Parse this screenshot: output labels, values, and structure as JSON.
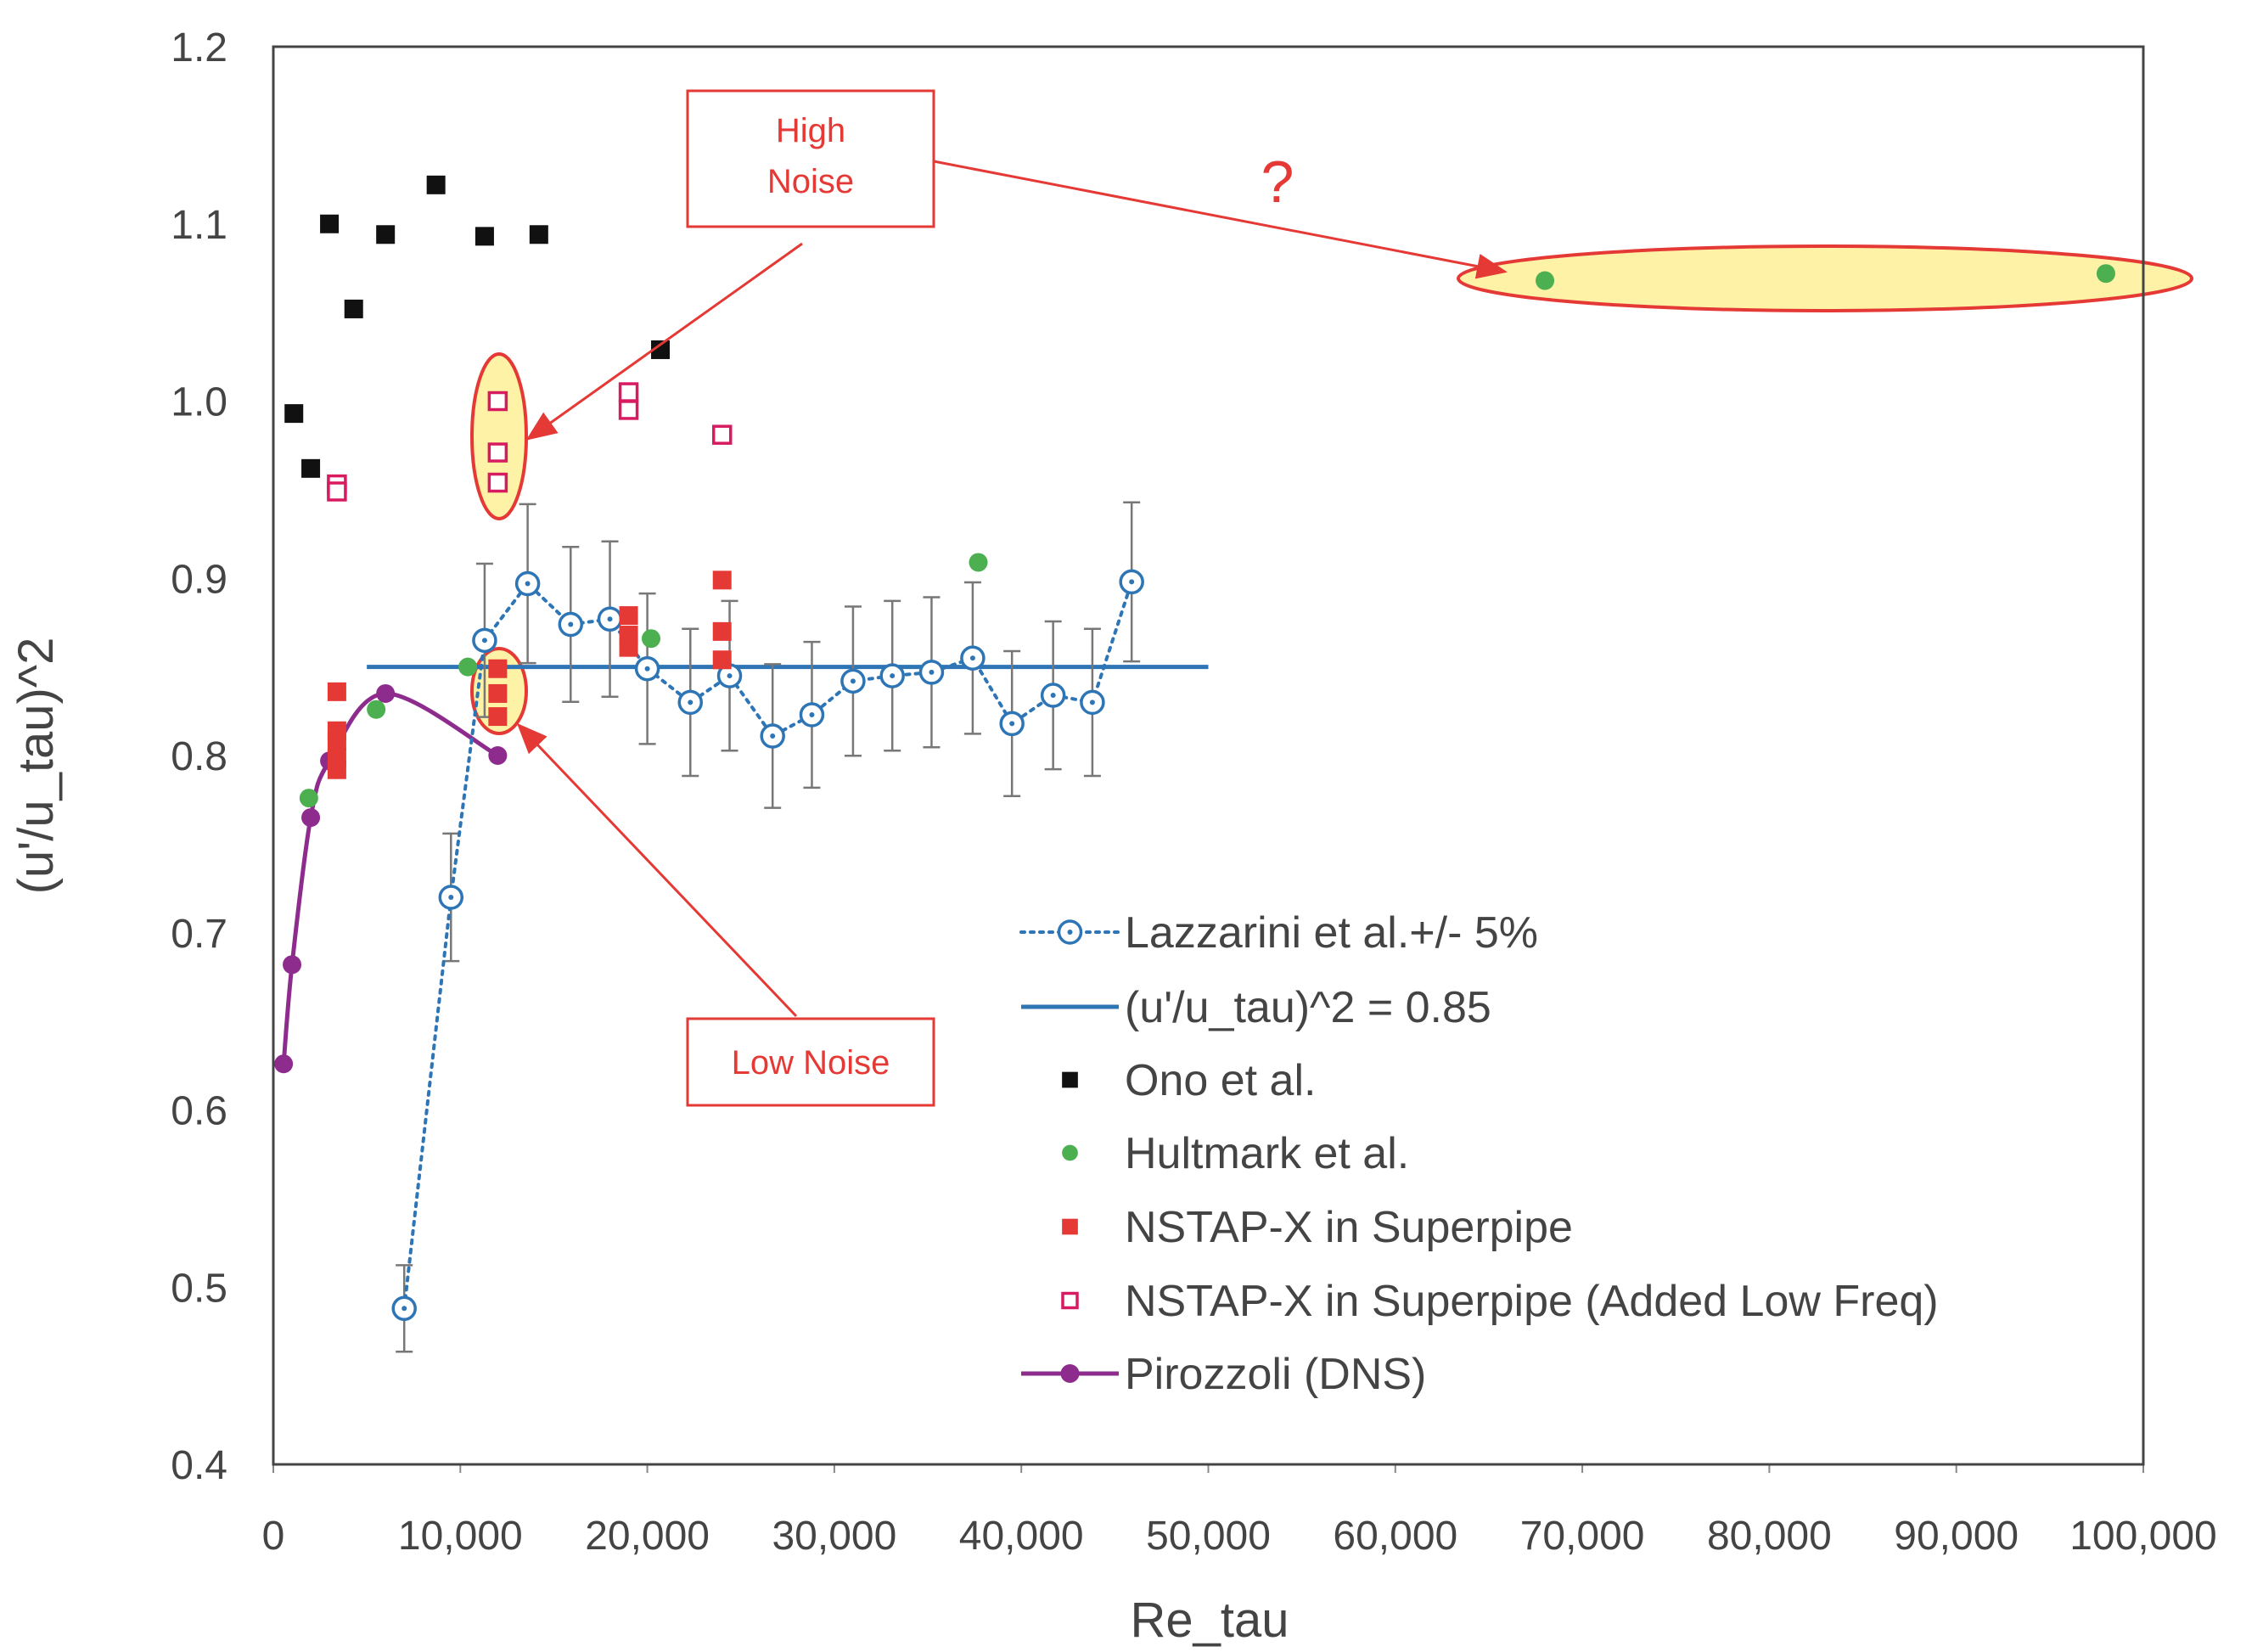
{
  "chart_data": {
    "type": "scatter",
    "title": "",
    "xlabel": "Re_tau",
    "ylabel": "(u'/u_tau)^2",
    "xlim": [
      0,
      100000
    ],
    "ylim": [
      0.4,
      1.2
    ],
    "grid": false,
    "x_ticks": [
      0,
      10000,
      20000,
      30000,
      40000,
      50000,
      60000,
      70000,
      80000,
      90000,
      100000
    ],
    "x_tick_labels": [
      "0",
      "10,000",
      "20,000",
      "30,000",
      "40,000",
      "50,000",
      "60,000",
      "70,000",
      "80,000",
      "90,000",
      "100,000"
    ],
    "y_ticks": [
      0.4,
      0.5,
      0.6,
      0.7,
      0.8,
      0.9,
      1.0,
      1.1,
      1.2
    ],
    "y_tick_labels": [
      "0.4",
      "0.5",
      "0.6",
      "0.7",
      "0.8",
      "0.9",
      "1.0",
      "1.1",
      "1.2"
    ],
    "legend_placement": "center",
    "series": [
      {
        "name": "Lazzarini et al.+/- 5%",
        "marker": "open-circle",
        "line": "dotted",
        "color": "#2e75b6",
        "error_fraction": 0.05,
        "points": [
          [
            7000,
            0.488
          ],
          [
            9500,
            0.72
          ],
          [
            11300,
            0.865
          ],
          [
            13600,
            0.897
          ],
          [
            15900,
            0.874
          ],
          [
            18000,
            0.877
          ],
          [
            20000,
            0.849
          ],
          [
            22300,
            0.83
          ],
          [
            24400,
            0.845
          ],
          [
            26700,
            0.811
          ],
          [
            28800,
            0.823
          ],
          [
            31000,
            0.842
          ],
          [
            33100,
            0.845
          ],
          [
            35200,
            0.847
          ],
          [
            37400,
            0.855
          ],
          [
            39500,
            0.818
          ],
          [
            41700,
            0.834
          ],
          [
            43800,
            0.83
          ],
          [
            45900,
            0.898
          ]
        ]
      },
      {
        "name": "(u'/u_tau)^2 = 0.85",
        "marker": "none",
        "line": "solid",
        "color": "#2e75b6",
        "points": [
          [
            5000,
            0.85
          ],
          [
            50000,
            0.85
          ]
        ]
      },
      {
        "name": "Ono et al.",
        "marker": "filled-square",
        "line": "none",
        "color": "#111111",
        "points": [
          [
            1100,
            0.993
          ],
          [
            2000,
            0.962
          ],
          [
            3000,
            1.1
          ],
          [
            4300,
            1.052
          ],
          [
            6000,
            1.094
          ],
          [
            8700,
            1.122
          ],
          [
            11300,
            1.093
          ],
          [
            14200,
            1.094
          ],
          [
            20700,
            1.029
          ]
        ]
      },
      {
        "name": "Hultmark et al.",
        "marker": "filled-circle",
        "line": "none",
        "color": "#4caf50",
        "points": [
          [
            1900,
            0.776
          ],
          [
            5500,
            0.826
          ],
          [
            10400,
            0.85
          ],
          [
            20200,
            0.866
          ],
          [
            37700,
            0.909
          ],
          [
            68000,
            1.068
          ],
          [
            98000,
            1.072
          ]
        ]
      },
      {
        "name": "NSTAP-X in Superpipe",
        "marker": "filled-square",
        "line": "none",
        "color": "#e53935",
        "points": [
          [
            3400,
            0.836
          ],
          [
            3400,
            0.814
          ],
          [
            3400,
            0.808
          ],
          [
            3400,
            0.799
          ],
          [
            3400,
            0.792
          ],
          [
            12000,
            0.849
          ],
          [
            12000,
            0.835
          ],
          [
            12000,
            0.822
          ],
          [
            19000,
            0.879
          ],
          [
            19000,
            0.868
          ],
          [
            19000,
            0.861
          ],
          [
            24000,
            0.899
          ],
          [
            24000,
            0.87
          ],
          [
            24000,
            0.854
          ]
        ]
      },
      {
        "name": "NSTAP-X in Superpipe (Added Low Freq)",
        "marker": "open-square",
        "line": "none",
        "color": "#d81b60",
        "points": [
          [
            3400,
            0.953
          ],
          [
            3400,
            0.949
          ],
          [
            12000,
            1.0
          ],
          [
            12000,
            0.971
          ],
          [
            12000,
            0.954
          ],
          [
            19000,
            1.005
          ],
          [
            19000,
            0.995
          ],
          [
            24000,
            0.981
          ]
        ]
      },
      {
        "name": "Pirozzoli (DNS)",
        "marker": "filled-circle",
        "line": "solid",
        "color": "#8e2c8e",
        "points": [
          [
            550,
            0.626
          ],
          [
            1000,
            0.682
          ],
          [
            2000,
            0.765
          ],
          [
            3000,
            0.797
          ],
          [
            6000,
            0.835
          ],
          [
            12000,
            0.8
          ]
        ]
      }
    ],
    "annotations": [
      {
        "text": "High Noise",
        "lines": [
          "High",
          "Noise"
        ],
        "color": "#e53935",
        "points_to": [
          12000,
          0.975
        ]
      },
      {
        "text": "Low Noise",
        "color": "#e53935",
        "points_to": [
          12000,
          0.838
        ]
      },
      {
        "text": "?",
        "color": "#e53935",
        "points_to": [
          68000,
          1.07
        ]
      }
    ]
  }
}
